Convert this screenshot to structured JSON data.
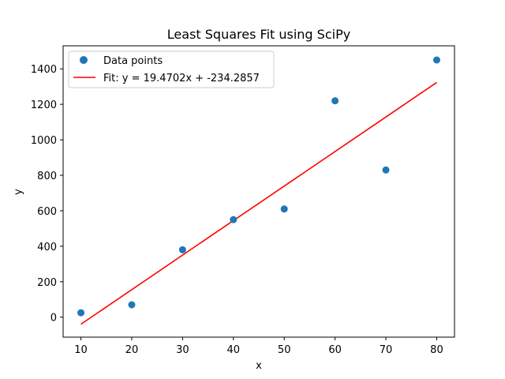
{
  "chart_data": {
    "type": "scatter",
    "title": "Least Squares Fit using SciPy",
    "xlabel": "x",
    "ylabel": "y",
    "xlim": [
      6.5,
      83.5
    ],
    "ylim": [
      -112.5,
      1530
    ],
    "xticks": [
      10,
      20,
      30,
      40,
      50,
      60,
      70,
      80
    ],
    "yticks": [
      0,
      200,
      400,
      600,
      800,
      1000,
      1200,
      1400
    ],
    "grid": false,
    "legend_position": "top-left",
    "series": [
      {
        "name": "Data points",
        "type": "scatter",
        "color": "#1f77b4",
        "x": [
          10,
          20,
          30,
          40,
          50,
          60,
          70,
          80
        ],
        "y": [
          25,
          70,
          380,
          550,
          610,
          1220,
          830,
          1450
        ]
      },
      {
        "name": "Fit: y = 19.4702x + -234.2857",
        "type": "line",
        "color": "#ff0000",
        "slope": 19.4702,
        "intercept": -234.2857,
        "x": [
          10,
          80
        ]
      }
    ]
  }
}
